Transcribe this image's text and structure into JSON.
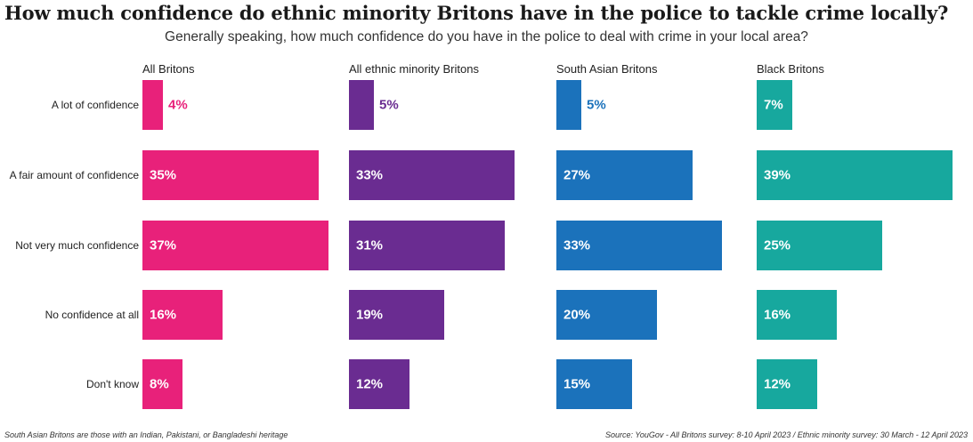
{
  "title": "How much confidence do ethnic minority Britons have in the police to tackle crime locally?",
  "subtitle": "Generally speaking, how much confidence do you have in the police to deal with crime in your local area?",
  "footnote_left": "South Asian Britons are those with an Indian, Pakistani, or Bangladeshi heritage",
  "footnote_right": "Source: YouGov - All Britons survey: 8-10 April 2023 / Ethnic minority survey: 30 March - 12 April 2023",
  "chart_data": {
    "type": "bar",
    "orientation": "horizontal",
    "categories": [
      "A lot of confidence",
      "A fair amount of confidence",
      "Not very much confidence",
      "No confidence at all",
      "Don't know"
    ],
    "value_suffix": "%",
    "xlim": [
      0,
      40
    ],
    "series": [
      {
        "name": "All Britons",
        "color": "#e8217a",
        "values": [
          4,
          35,
          37,
          16,
          8
        ]
      },
      {
        "name": "All ethnic minority Britons",
        "color": "#6a2c91",
        "values": [
          5,
          33,
          31,
          19,
          12
        ]
      },
      {
        "name": "South Asian Britons",
        "color": "#1b72bb",
        "values": [
          5,
          27,
          33,
          20,
          15
        ]
      },
      {
        "name": "Black Britons",
        "color": "#17a89e",
        "values": [
          7,
          39,
          25,
          16,
          12
        ]
      }
    ]
  }
}
